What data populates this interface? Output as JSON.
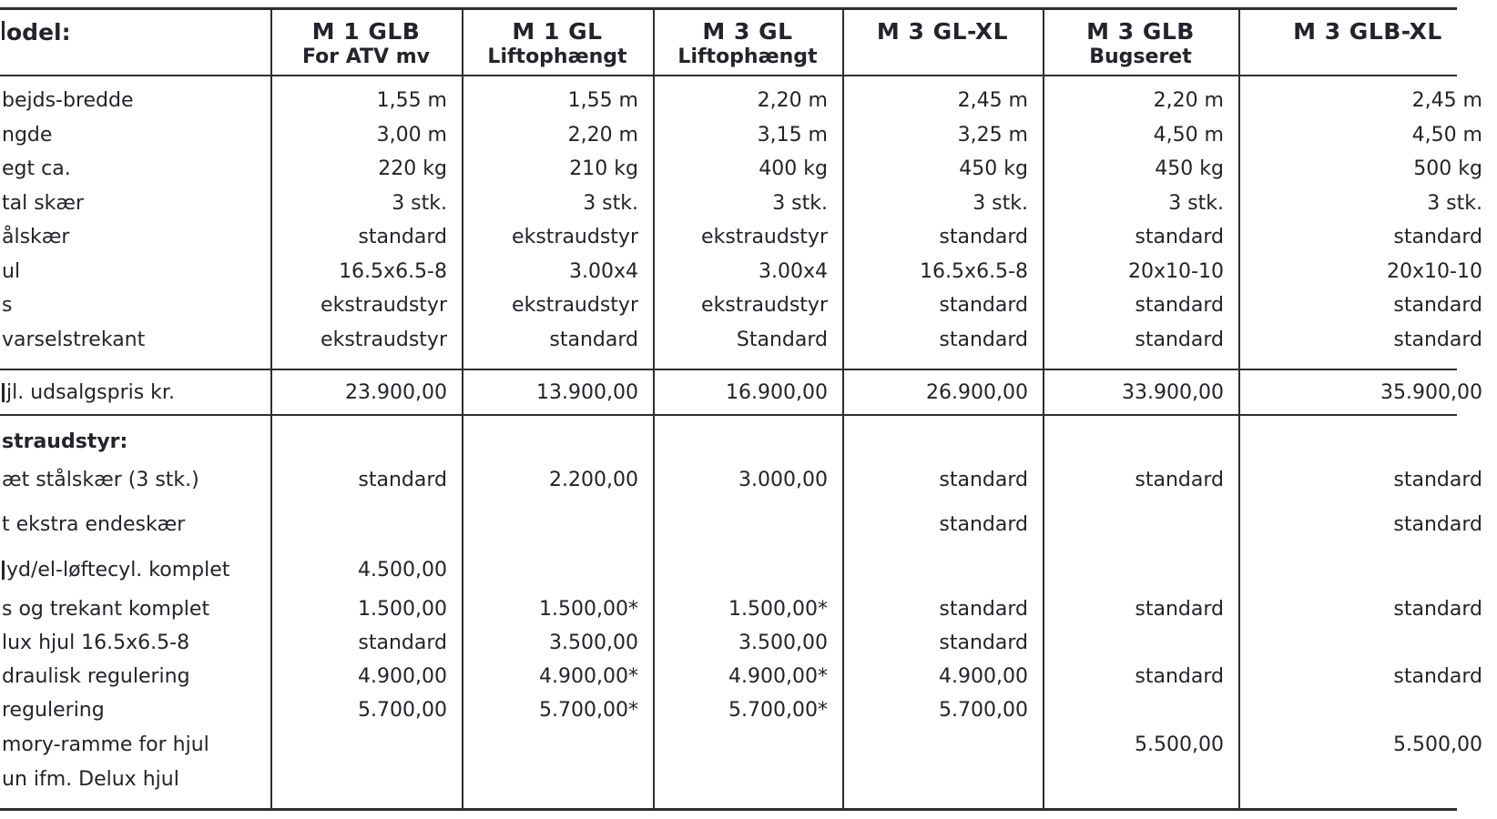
{
  "colors": {
    "background": "#ffffff",
    "text": "#23232b",
    "border": "#2e2e2e"
  },
  "table": {
    "header": {
      "label": "odel:",
      "label_sliver": true,
      "columns": [
        {
          "name": "M 1 GLB",
          "subtitle": "For ATV mv"
        },
        {
          "name": "M 1 GL",
          "subtitle": "Liftophængt"
        },
        {
          "name": "M 3 GL",
          "subtitle": "Liftophængt"
        },
        {
          "name": "M 3 GL-XL",
          "subtitle": ""
        },
        {
          "name": "M 3 GLB",
          "subtitle": "Bugseret"
        },
        {
          "name": "M 3 GLB-XL",
          "subtitle": ""
        }
      ]
    },
    "spec_rows": [
      {
        "label": "bejds-bredde",
        "sliver": false,
        "values": [
          "1,55 m",
          "1,55 m",
          "2,20 m",
          "2,45 m",
          "2,20 m",
          "2,45 m"
        ]
      },
      {
        "label": "ngde",
        "sliver": false,
        "values": [
          "3,00 m",
          "2,20 m",
          "3,15 m",
          "3,25 m",
          "4,50 m",
          "4,50 m"
        ]
      },
      {
        "label": "egt ca.",
        "sliver": false,
        "values": [
          "220 kg",
          "210 kg",
          "400 kg",
          "450 kg",
          "450 kg",
          "500 kg"
        ]
      },
      {
        "label": "tal skær",
        "sliver": false,
        "values": [
          "3 stk.",
          "3 stk.",
          "3 stk.",
          "3 stk.",
          "3 stk.",
          "3 stk."
        ]
      },
      {
        "label": "ålskær",
        "sliver": false,
        "values": [
          "standard",
          "ekstraudstyr",
          "ekstraudstyr",
          "standard",
          "standard",
          "standard"
        ]
      },
      {
        "label": "ul",
        "sliver": false,
        "values": [
          "16.5x6.5-8",
          "3.00x4",
          "3.00x4",
          "16.5x6.5-8",
          "20x10-10",
          "20x10-10"
        ]
      },
      {
        "label": "s",
        "sliver": false,
        "values": [
          "ekstraudstyr",
          "ekstraudstyr",
          "ekstraudstyr",
          "standard",
          "standard",
          "standard"
        ]
      },
      {
        "label": "varselstrekant",
        "sliver": false,
        "values": [
          "ekstraudstyr",
          "standard",
          "Standard",
          "standard",
          "standard",
          "standard"
        ]
      }
    ],
    "price_row": {
      "label": "jl. udsalgspris kr.",
      "sliver": true,
      "values": [
        "23.900,00",
        "13.900,00",
        "16.900,00",
        "26.900,00",
        "33.900,00",
        "35.900,00"
      ]
    },
    "extras_header": "straudstyr:",
    "extras_rows": [
      {
        "label": "æt stålskær (3 stk.)",
        "sliver": false,
        "values": [
          "standard",
          "2.200,00",
          "3.000,00",
          "standard",
          "standard",
          "standard"
        ]
      },
      {
        "label": "t ekstra endeskær",
        "sliver": false,
        "values": [
          "",
          "",
          "",
          "standard",
          "",
          "standard"
        ]
      },
      {
        "label": "yd/el-løftecyl. komplet",
        "sliver": true,
        "values": [
          "4.500,00",
          "",
          "",
          "",
          "",
          ""
        ]
      },
      {
        "label": "s og trekant komplet",
        "sliver": false,
        "values": [
          "1.500,00",
          "1.500,00*",
          "1.500,00*",
          "standard",
          "standard",
          "standard"
        ]
      },
      {
        "label": "lux hjul 16.5x6.5-8",
        "sliver": false,
        "values": [
          "standard",
          "3.500,00",
          "3.500,00",
          "standard",
          "",
          ""
        ]
      },
      {
        "label": "draulisk regulering",
        "sliver": false,
        "values": [
          "4.900,00",
          "4.900,00*",
          "4.900,00*",
          "4.900,00",
          "standard",
          "standard"
        ]
      },
      {
        "label": "regulering",
        "sliver": false,
        "values": [
          "5.700,00",
          "5.700,00*",
          "5.700,00*",
          "5.700,00",
          "",
          ""
        ]
      },
      {
        "label": "mory-ramme for hjul",
        "sliver": false,
        "values": [
          "",
          "",
          "",
          "",
          "5.500,00",
          "5.500,00"
        ]
      },
      {
        "label": "un ifm. Delux hjul",
        "sliver": false,
        "values": [
          "",
          "",
          "",
          "",
          "",
          ""
        ]
      }
    ]
  }
}
